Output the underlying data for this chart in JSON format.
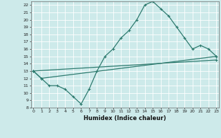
{
  "xlabel": "Humidex (Indice chaleur)",
  "line1_x": [
    0,
    1,
    2,
    3,
    4,
    5,
    6,
    7,
    8,
    9,
    10,
    11,
    12,
    13,
    14,
    15,
    16,
    17,
    18,
    19,
    20,
    21,
    22,
    23
  ],
  "line1_y": [
    13.0,
    12.0,
    11.0,
    11.0,
    10.5,
    9.5,
    8.5,
    10.5,
    13.0,
    15.0,
    16.0,
    17.5,
    18.5,
    20.0,
    22.0,
    22.5,
    21.5,
    20.5,
    19.0,
    17.5,
    16.0,
    16.5,
    16.0,
    15.0
  ],
  "line2_x": [
    0,
    1,
    23
  ],
  "line2_y": [
    13.0,
    12.0,
    15.0
  ],
  "line3_x": [
    0,
    23
  ],
  "line3_y": [
    13.0,
    14.5
  ],
  "line_color": "#2d7a6e",
  "bg_color": "#cdeaea",
  "grid_color": "#ffffff",
  "xlim": [
    0,
    23
  ],
  "ylim": [
    8,
    22.5
  ],
  "yticks": [
    8,
    9,
    10,
    11,
    12,
    13,
    14,
    15,
    16,
    17,
    18,
    19,
    20,
    21,
    22
  ],
  "xticks": [
    0,
    1,
    2,
    3,
    4,
    5,
    6,
    7,
    8,
    9,
    10,
    11,
    12,
    13,
    14,
    15,
    16,
    17,
    18,
    19,
    20,
    21,
    22,
    23
  ]
}
